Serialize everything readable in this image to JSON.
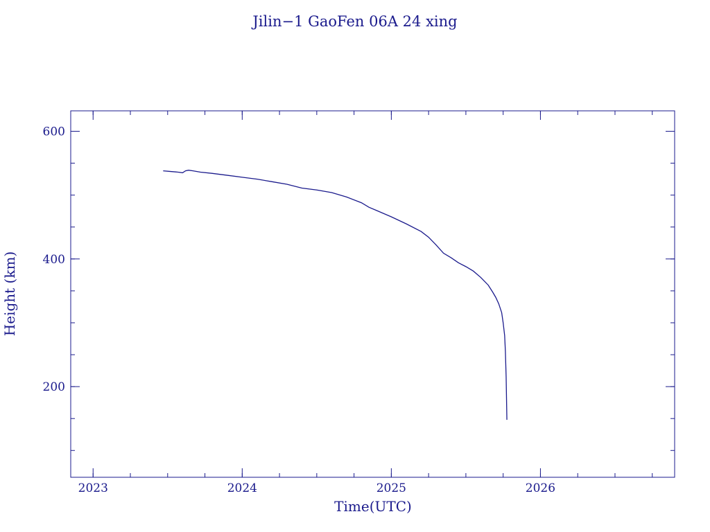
{
  "chart_data": {
    "type": "line",
    "title": "Jilin−1 GaoFen 06A 24 xing",
    "xlabel": "Time(UTC)",
    "ylabel": "Height (km)",
    "xlim": [
      2022.85,
      2026.9
    ],
    "ylim": [
      58,
      632
    ],
    "x_ticks": [
      {
        "value": 2023,
        "label": "2023"
      },
      {
        "value": 2024,
        "label": "2024"
      },
      {
        "value": 2025,
        "label": "2025"
      },
      {
        "value": 2026,
        "label": "2026"
      }
    ],
    "y_ticks": [
      {
        "value": 200,
        "label": "200"
      },
      {
        "value": 400,
        "label": "400"
      },
      {
        "value": 600,
        "label": "600"
      }
    ],
    "x_minor_step": 0.25,
    "y_minor_step": 50,
    "grid": false,
    "legend": "none",
    "line_color": "#1a1a8c",
    "text_color": "#1a1a8c",
    "series": [
      {
        "x": [
          2023.47,
          2023.52,
          2023.57,
          2023.6,
          2023.62,
          2023.64,
          2023.67,
          2023.72,
          2023.8,
          2023.9,
          2024.0,
          2024.1,
          2024.2,
          2024.3,
          2024.4,
          2024.5,
          2024.6,
          2024.7,
          2024.8,
          2024.85,
          2024.9,
          2025.0,
          2025.1,
          2025.2,
          2025.25,
          2025.3,
          2025.35,
          2025.4,
          2025.45,
          2025.5,
          2025.55,
          2025.6,
          2025.65,
          2025.68,
          2025.7,
          2025.72,
          2025.74,
          2025.75,
          2025.76,
          2025.765,
          2025.77,
          2025.775
        ],
        "y": [
          538,
          537,
          536,
          535,
          538,
          539,
          538,
          536,
          534,
          531,
          528,
          525,
          521,
          517,
          511,
          508,
          504,
          497,
          488,
          481,
          476,
          466,
          455,
          443,
          434,
          422,
          409,
          402,
          394,
          388,
          381,
          371,
          359,
          348,
          340,
          330,
          316,
          300,
          280,
          255,
          215,
          148
        ]
      }
    ]
  }
}
